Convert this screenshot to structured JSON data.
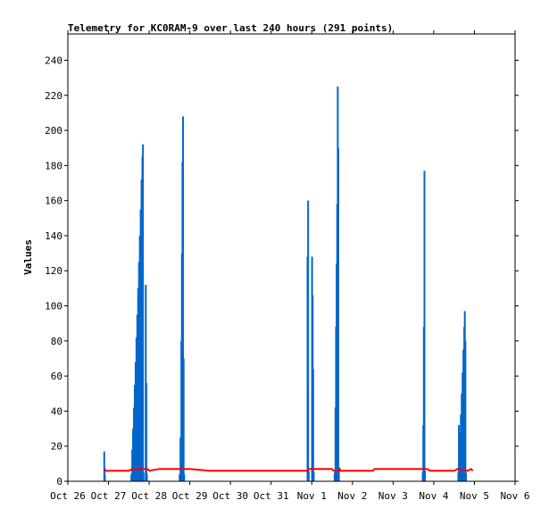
{
  "chart_data": {
    "type": "line",
    "title": "Telemetry for KC0RAM-9 over last 240 hours (291 points)",
    "xlabel": "",
    "ylabel": "Values",
    "ylim": [
      0,
      255
    ],
    "yticks": [
      0,
      20,
      40,
      60,
      80,
      100,
      120,
      140,
      160,
      180,
      200,
      220,
      240
    ],
    "xlim": [
      "Oct 26 00:00",
      "Nov 6 00:00"
    ],
    "xticks": [
      "Oct 26",
      "Oct 27",
      "Oct 28",
      "Oct 29",
      "Oct 30",
      "Oct 31",
      "Nov 1",
      "Nov 2",
      "Nov 3",
      "Nov 4",
      "Nov 5",
      "Nov 6"
    ],
    "grid": false,
    "legend": "none",
    "series": [
      {
        "color": "#0066cc",
        "style": "impulse",
        "points": [
          [
            "Oct 26 21:30",
            17
          ],
          [
            "Oct 26 21:40",
            8
          ],
          [
            "Oct 26 21:50",
            4
          ],
          [
            "Oct 27 13:30",
            4
          ],
          [
            "Oct 27 14:00",
            18
          ],
          [
            "Oct 27 14:30",
            30
          ],
          [
            "Oct 27 15:00",
            42
          ],
          [
            "Oct 27 15:30",
            55
          ],
          [
            "Oct 27 16:00",
            68
          ],
          [
            "Oct 27 16:30",
            82
          ],
          [
            "Oct 27 17:00",
            95
          ],
          [
            "Oct 27 17:30",
            110
          ],
          [
            "Oct 27 18:00",
            125
          ],
          [
            "Oct 27 18:30",
            140
          ],
          [
            "Oct 27 19:00",
            155
          ],
          [
            "Oct 27 19:30",
            172
          ],
          [
            "Oct 27 20:00",
            185
          ],
          [
            "Oct 27 20:20",
            192
          ],
          [
            "Oct 27 20:40",
            5
          ],
          [
            "Oct 27 22:00",
            112
          ],
          [
            "Oct 27 22:20",
            56
          ],
          [
            "Oct 27 22:40",
            4
          ],
          [
            "Oct 28 18:00",
            4
          ],
          [
            "Oct 28 18:30",
            25
          ],
          [
            "Oct 28 19:00",
            80
          ],
          [
            "Oct 28 19:20",
            130
          ],
          [
            "Oct 28 19:40",
            182
          ],
          [
            "Oct 28 20:00",
            208
          ],
          [
            "Oct 28 20:20",
            70
          ],
          [
            "Oct 28 20:40",
            4
          ],
          [
            "Oct 31 21:30",
            128
          ],
          [
            "Oct 31 21:50",
            160
          ],
          [
            "Oct 31 22:10",
            6
          ],
          [
            "Nov 1 00:10",
            128
          ],
          [
            "Nov 1 00:30",
            106
          ],
          [
            "Nov 1 00:50",
            64
          ],
          [
            "Nov 1 01:10",
            5
          ],
          [
            "Nov 1 13:30",
            5
          ],
          [
            "Nov 1 14:00",
            42
          ],
          [
            "Nov 1 14:20",
            88
          ],
          [
            "Nov 1 14:40",
            124
          ],
          [
            "Nov 1 15:00",
            158
          ],
          [
            "Nov 1 15:20",
            225
          ],
          [
            "Nov 1 15:40",
            190
          ],
          [
            "Nov 1 16:00",
            6
          ],
          [
            "Nov 3 17:30",
            5
          ],
          [
            "Nov 3 17:50",
            32
          ],
          [
            "Nov 3 18:10",
            88
          ],
          [
            "Nov 3 18:30",
            177
          ],
          [
            "Nov 3 18:50",
            6
          ],
          [
            "Nov 4 14:30",
            5
          ],
          [
            "Nov 4 14:50",
            32
          ],
          [
            "Nov 4 15:10",
            16
          ],
          [
            "Nov 4 15:30",
            28
          ],
          [
            "Nov 4 16:00",
            38
          ],
          [
            "Nov 4 16:30",
            50
          ],
          [
            "Nov 4 17:00",
            62
          ],
          [
            "Nov 4 17:30",
            75
          ],
          [
            "Nov 4 18:00",
            88
          ],
          [
            "Nov 4 18:20",
            97
          ],
          [
            "Nov 4 18:40",
            80
          ],
          [
            "Nov 4 19:00",
            5
          ]
        ]
      },
      {
        "color": "#ff0000",
        "style": "line",
        "points": [
          [
            "Oct 26 21:30",
            7
          ],
          [
            "Oct 26 22:30",
            6
          ],
          [
            "Oct 27 12:00",
            6
          ],
          [
            "Oct 27 14:00",
            7
          ],
          [
            "Oct 27 23:00",
            7
          ],
          [
            "Oct 28 00:00",
            6
          ],
          [
            "Oct 28 06:00",
            7
          ],
          [
            "Oct 28 23:00",
            7
          ],
          [
            "Oct 29 00:00",
            7
          ],
          [
            "Oct 29 12:00",
            6
          ],
          [
            "Oct 30 12:00",
            6
          ],
          [
            "Oct 31 12:00",
            6
          ],
          [
            "Oct 31 21:00",
            6
          ],
          [
            "Oct 31 22:00",
            7
          ],
          [
            "Nov 1 12:00",
            7
          ],
          [
            "Nov 1 13:00",
            6
          ],
          [
            "Nov 1 16:00",
            6
          ],
          [
            "Nov 1 16:30",
            7
          ],
          [
            "Nov 1 17:00",
            6
          ],
          [
            "Nov 2 12:00",
            6
          ],
          [
            "Nov 2 13:00",
            7
          ],
          [
            "Nov 3 12:00",
            7
          ],
          [
            "Nov 3 20:00",
            7
          ],
          [
            "Nov 3 22:00",
            6
          ],
          [
            "Nov 4 12:00",
            6
          ],
          [
            "Nov 4 14:00",
            7
          ],
          [
            "Nov 4 20:00",
            6
          ],
          [
            "Nov 4 22:00",
            7
          ],
          [
            "Nov 4 23:00",
            6
          ]
        ]
      }
    ]
  }
}
